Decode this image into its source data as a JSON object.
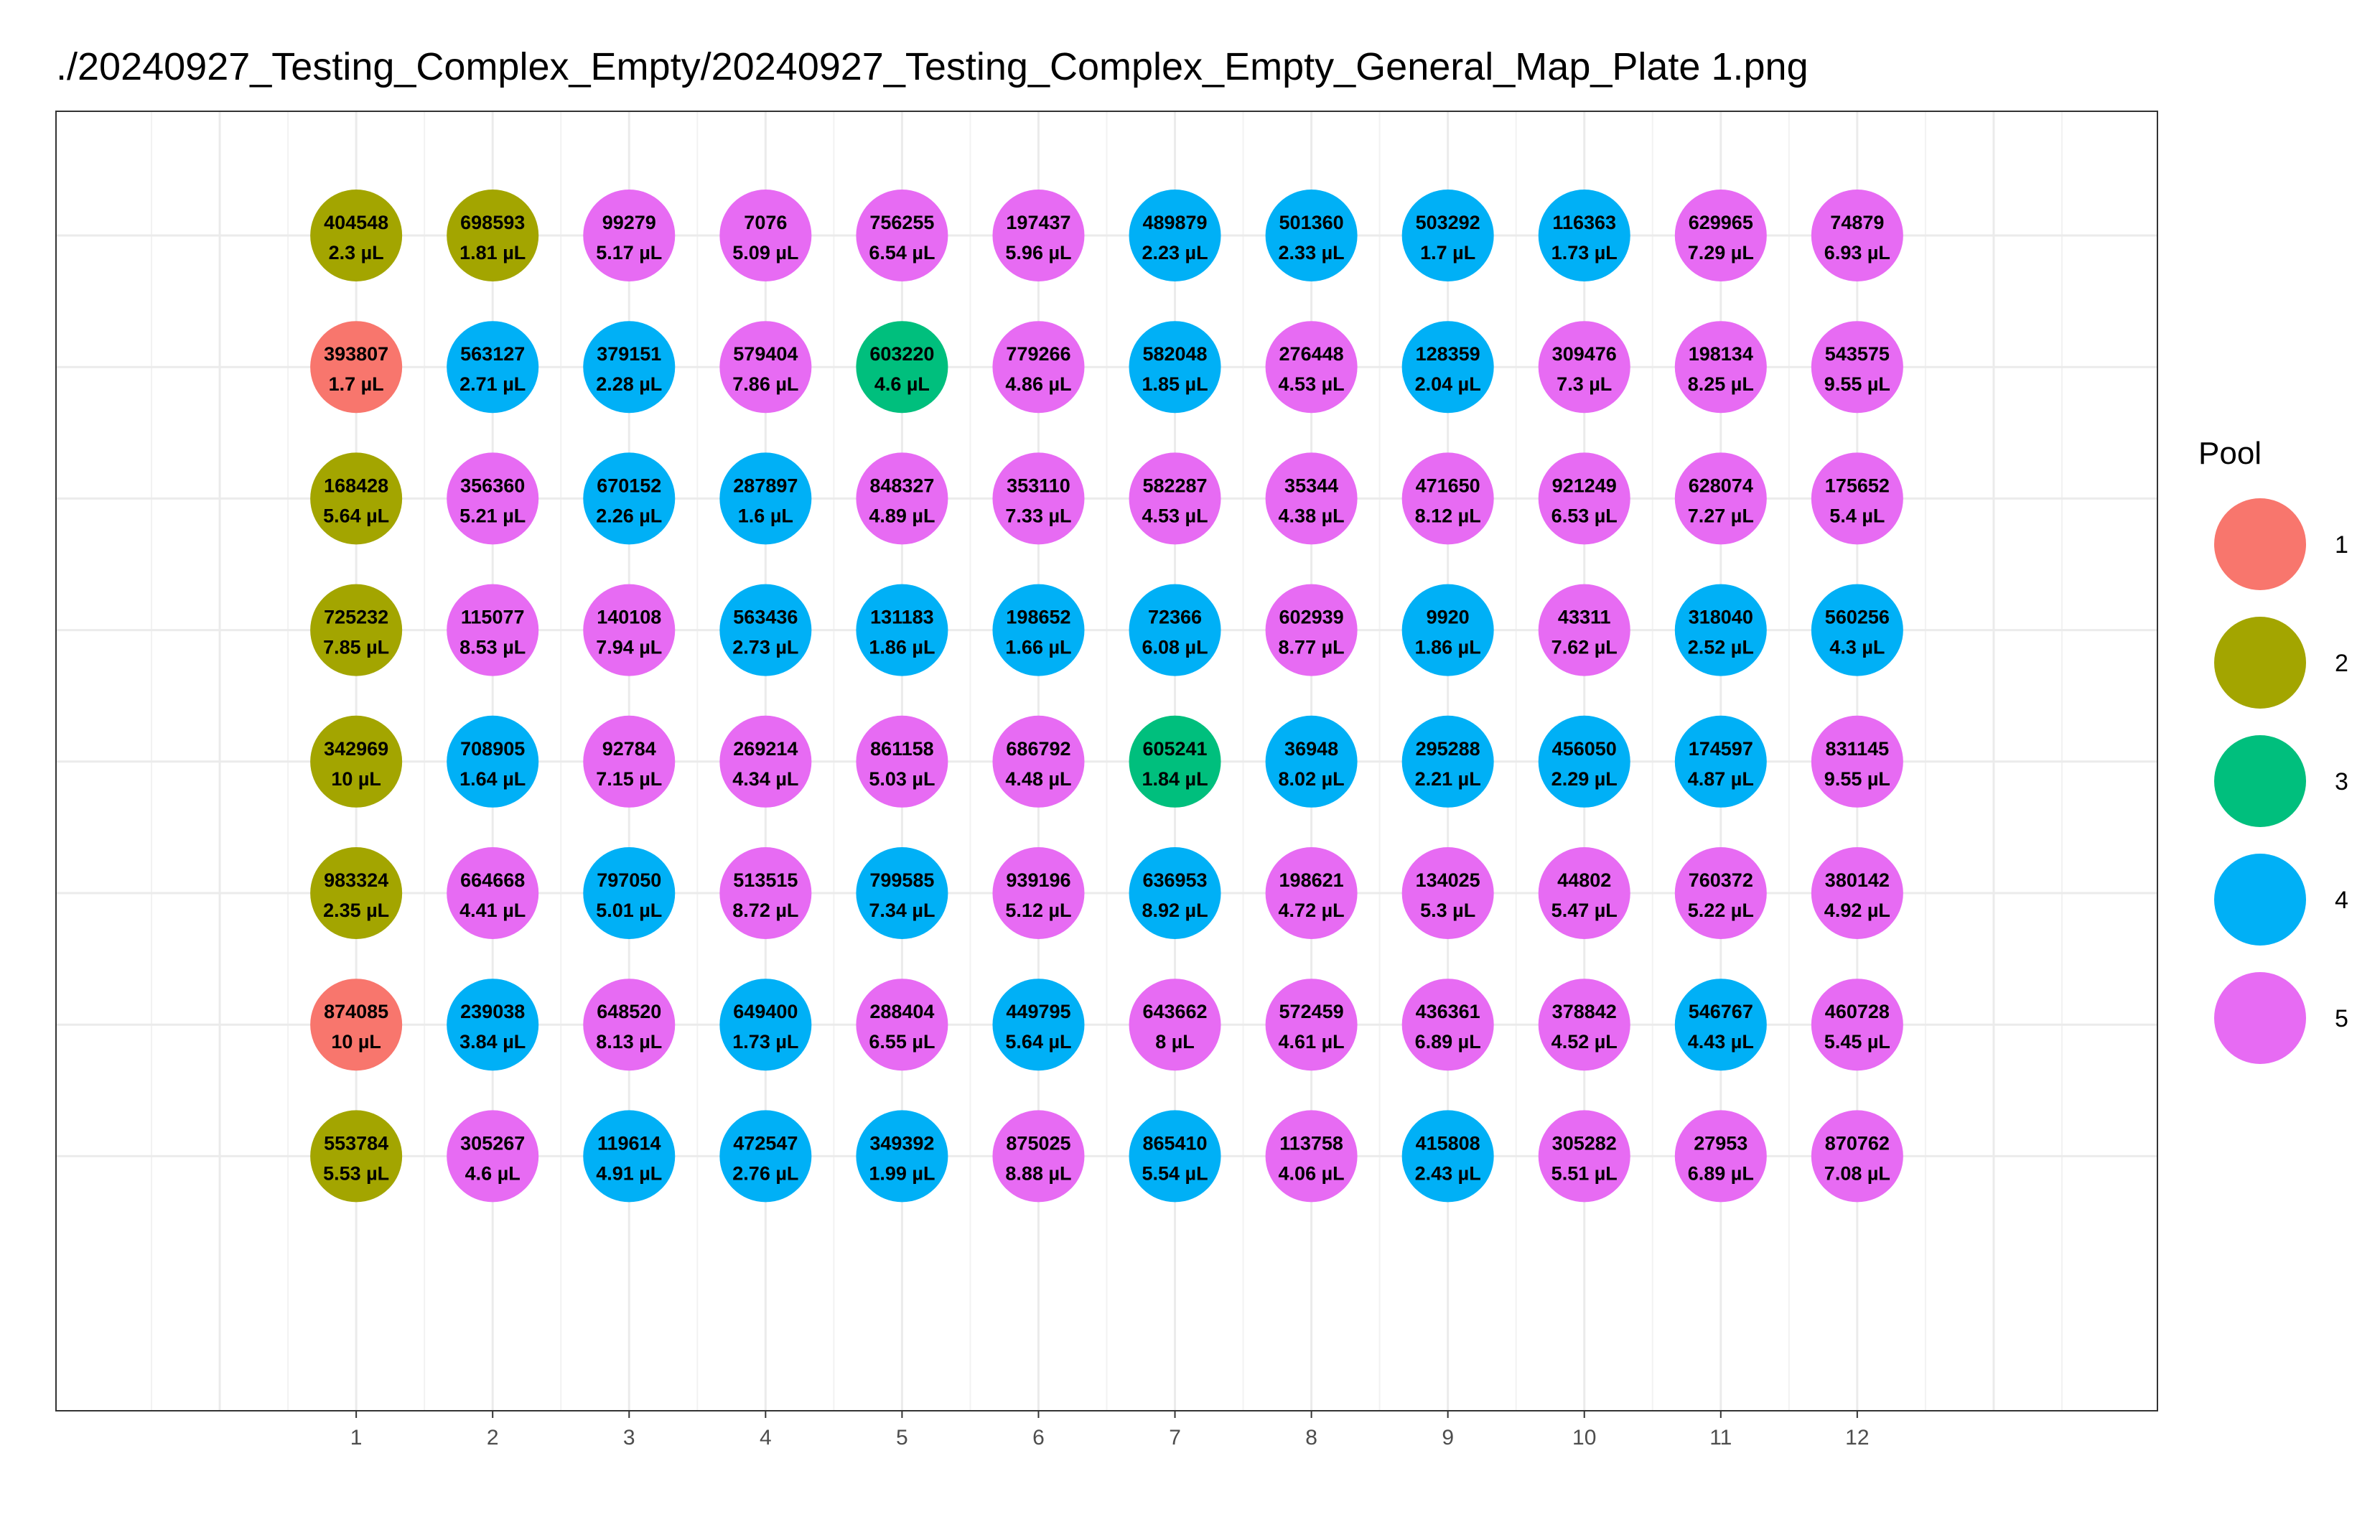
{
  "title": "./20240927_Testing_Complex_Empty/20240927_Testing_Complex_Empty_General_Map_Plate 1.png",
  "chart_data": {
    "type": "scatter",
    "xlabel": "",
    "ylabel": "",
    "x_ticks": [
      "1",
      "2",
      "3",
      "4",
      "5",
      "6",
      "7",
      "8",
      "9",
      "10",
      "11",
      "12"
    ],
    "xlim": [
      -1.2,
      14.2
    ],
    "rows": 8,
    "legend": {
      "title": "Pool",
      "placement": "right",
      "items": [
        {
          "label": "1",
          "color": "#F8766D"
        },
        {
          "label": "2",
          "color": "#A3A500"
        },
        {
          "label": "3",
          "color": "#00BF7D"
        },
        {
          "label": "4",
          "color": "#00B0F6"
        },
        {
          "label": "5",
          "color": "#E76BF3"
        }
      ]
    },
    "grid": true,
    "wells": [
      [
        {
          "id": "404548",
          "vol": "2.3 µL",
          "pool": 2
        },
        {
          "id": "698593",
          "vol": "1.81 µL",
          "pool": 2
        },
        {
          "id": "99279",
          "vol": "5.17 µL",
          "pool": 5
        },
        {
          "id": "7076",
          "vol": "5.09 µL",
          "pool": 5
        },
        {
          "id": "756255",
          "vol": "6.54 µL",
          "pool": 5
        },
        {
          "id": "197437",
          "vol": "5.96 µL",
          "pool": 5
        },
        {
          "id": "489879",
          "vol": "2.23 µL",
          "pool": 4
        },
        {
          "id": "501360",
          "vol": "2.33 µL",
          "pool": 4
        },
        {
          "id": "503292",
          "vol": "1.7 µL",
          "pool": 4
        },
        {
          "id": "116363",
          "vol": "1.73 µL",
          "pool": 4
        },
        {
          "id": "629965",
          "vol": "7.29 µL",
          "pool": 5
        },
        {
          "id": "74879",
          "vol": "6.93 µL",
          "pool": 5
        }
      ],
      [
        {
          "id": "393807",
          "vol": "1.7 µL",
          "pool": 1
        },
        {
          "id": "563127",
          "vol": "2.71 µL",
          "pool": 4
        },
        {
          "id": "379151",
          "vol": "2.28 µL",
          "pool": 4
        },
        {
          "id": "579404",
          "vol": "7.86 µL",
          "pool": 5
        },
        {
          "id": "603220",
          "vol": "4.6 µL",
          "pool": 3
        },
        {
          "id": "779266",
          "vol": "4.86 µL",
          "pool": 5
        },
        {
          "id": "582048",
          "vol": "1.85 µL",
          "pool": 4
        },
        {
          "id": "276448",
          "vol": "4.53 µL",
          "pool": 5
        },
        {
          "id": "128359",
          "vol": "2.04 µL",
          "pool": 4
        },
        {
          "id": "309476",
          "vol": "7.3 µL",
          "pool": 5
        },
        {
          "id": "198134",
          "vol": "8.25 µL",
          "pool": 5
        },
        {
          "id": "543575",
          "vol": "9.55 µL",
          "pool": 5
        }
      ],
      [
        {
          "id": "168428",
          "vol": "5.64 µL",
          "pool": 2
        },
        {
          "id": "356360",
          "vol": "5.21 µL",
          "pool": 5
        },
        {
          "id": "670152",
          "vol": "2.26 µL",
          "pool": 4
        },
        {
          "id": "287897",
          "vol": "1.6 µL",
          "pool": 4
        },
        {
          "id": "848327",
          "vol": "4.89 µL",
          "pool": 5
        },
        {
          "id": "353110",
          "vol": "7.33 µL",
          "pool": 5
        },
        {
          "id": "582287",
          "vol": "4.53 µL",
          "pool": 5
        },
        {
          "id": "35344",
          "vol": "4.38 µL",
          "pool": 5
        },
        {
          "id": "471650",
          "vol": "8.12 µL",
          "pool": 5
        },
        {
          "id": "921249",
          "vol": "6.53 µL",
          "pool": 5
        },
        {
          "id": "628074",
          "vol": "7.27 µL",
          "pool": 5
        },
        {
          "id": "175652",
          "vol": "5.4 µL",
          "pool": 5
        }
      ],
      [
        {
          "id": "725232",
          "vol": "7.85 µL",
          "pool": 2
        },
        {
          "id": "115077",
          "vol": "8.53 µL",
          "pool": 5
        },
        {
          "id": "140108",
          "vol": "7.94 µL",
          "pool": 5
        },
        {
          "id": "563436",
          "vol": "2.73 µL",
          "pool": 4
        },
        {
          "id": "131183",
          "vol": "1.86 µL",
          "pool": 4
        },
        {
          "id": "198652",
          "vol": "1.66 µL",
          "pool": 4
        },
        {
          "id": "72366",
          "vol": "6.08 µL",
          "pool": 4
        },
        {
          "id": "602939",
          "vol": "8.77 µL",
          "pool": 5
        },
        {
          "id": "9920",
          "vol": "1.86 µL",
          "pool": 4
        },
        {
          "id": "43311",
          "vol": "7.62 µL",
          "pool": 5
        },
        {
          "id": "318040",
          "vol": "2.52 µL",
          "pool": 4
        },
        {
          "id": "560256",
          "vol": "4.3 µL",
          "pool": 4
        }
      ],
      [
        {
          "id": "342969",
          "vol": "10 µL",
          "pool": 2
        },
        {
          "id": "708905",
          "vol": "1.64 µL",
          "pool": 4
        },
        {
          "id": "92784",
          "vol": "7.15 µL",
          "pool": 5
        },
        {
          "id": "269214",
          "vol": "4.34 µL",
          "pool": 5
        },
        {
          "id": "861158",
          "vol": "5.03 µL",
          "pool": 5
        },
        {
          "id": "686792",
          "vol": "4.48 µL",
          "pool": 5
        },
        {
          "id": "605241",
          "vol": "1.84 µL",
          "pool": 3
        },
        {
          "id": "36948",
          "vol": "8.02 µL",
          "pool": 4
        },
        {
          "id": "295288",
          "vol": "2.21 µL",
          "pool": 4
        },
        {
          "id": "456050",
          "vol": "2.29 µL",
          "pool": 4
        },
        {
          "id": "174597",
          "vol": "4.87 µL",
          "pool": 4
        },
        {
          "id": "831145",
          "vol": "9.55 µL",
          "pool": 5
        }
      ],
      [
        {
          "id": "983324",
          "vol": "2.35 µL",
          "pool": 2
        },
        {
          "id": "664668",
          "vol": "4.41 µL",
          "pool": 5
        },
        {
          "id": "797050",
          "vol": "5.01 µL",
          "pool": 4
        },
        {
          "id": "513515",
          "vol": "8.72 µL",
          "pool": 5
        },
        {
          "id": "799585",
          "vol": "7.34 µL",
          "pool": 4
        },
        {
          "id": "939196",
          "vol": "5.12 µL",
          "pool": 5
        },
        {
          "id": "636953",
          "vol": "8.92 µL",
          "pool": 4
        },
        {
          "id": "198621",
          "vol": "4.72 µL",
          "pool": 5
        },
        {
          "id": "134025",
          "vol": "5.3 µL",
          "pool": 5
        },
        {
          "id": "44802",
          "vol": "5.47 µL",
          "pool": 5
        },
        {
          "id": "760372",
          "vol": "5.22 µL",
          "pool": 5
        },
        {
          "id": "380142",
          "vol": "4.92 µL",
          "pool": 5
        }
      ],
      [
        {
          "id": "874085",
          "vol": "10 µL",
          "pool": 1
        },
        {
          "id": "239038",
          "vol": "3.84 µL",
          "pool": 4
        },
        {
          "id": "648520",
          "vol": "8.13 µL",
          "pool": 5
        },
        {
          "id": "649400",
          "vol": "1.73 µL",
          "pool": 4
        },
        {
          "id": "288404",
          "vol": "6.55 µL",
          "pool": 5
        },
        {
          "id": "449795",
          "vol": "5.64 µL",
          "pool": 4
        },
        {
          "id": "643662",
          "vol": "8 µL",
          "pool": 5
        },
        {
          "id": "572459",
          "vol": "4.61 µL",
          "pool": 5
        },
        {
          "id": "436361",
          "vol": "6.89 µL",
          "pool": 5
        },
        {
          "id": "378842",
          "vol": "4.52 µL",
          "pool": 5
        },
        {
          "id": "546767",
          "vol": "4.43 µL",
          "pool": 4
        },
        {
          "id": "460728",
          "vol": "5.45 µL",
          "pool": 5
        }
      ],
      [
        {
          "id": "553784",
          "vol": "5.53 µL",
          "pool": 2
        },
        {
          "id": "305267",
          "vol": "4.6 µL",
          "pool": 5
        },
        {
          "id": "119614",
          "vol": "4.91 µL",
          "pool": 4
        },
        {
          "id": "472547",
          "vol": "2.76 µL",
          "pool": 4
        },
        {
          "id": "349392",
          "vol": "1.99 µL",
          "pool": 4
        },
        {
          "id": "875025",
          "vol": "8.88 µL",
          "pool": 5
        },
        {
          "id": "865410",
          "vol": "5.54 µL",
          "pool": 4
        },
        {
          "id": "113758",
          "vol": "4.06 µL",
          "pool": 5
        },
        {
          "id": "415808",
          "vol": "2.43 µL",
          "pool": 4
        },
        {
          "id": "305282",
          "vol": "5.51 µL",
          "pool": 5
        },
        {
          "id": "27953",
          "vol": "6.89 µL",
          "pool": 5
        },
        {
          "id": "870762",
          "vol": "7.08 µL",
          "pool": 5
        }
      ]
    ]
  }
}
